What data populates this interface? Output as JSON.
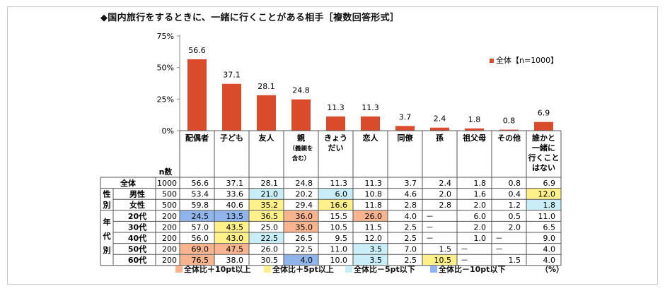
{
  "title": "◆国内旅行をするときに、一緒に行くことがある相手［複数回答形式］",
  "colors": {
    "bar": "#d94b2b",
    "plus10": "#f7b48f",
    "plus5": "#fff08a",
    "minus5": "#c9eef8",
    "minus10": "#8fb5ec"
  },
  "chart_data": {
    "type": "bar",
    "categories": [
      "配偶者",
      "子ども",
      "友人",
      "親",
      "きょうだい",
      "恋人",
      "同僚",
      "孫",
      "祖父母",
      "その他",
      "誰かと一緒に行くことはない"
    ],
    "category_lines": [
      [
        "配偶者"
      ],
      [
        "子ども"
      ],
      [
        "友人"
      ],
      [
        "親",
        "（義親を",
        "含む）"
      ],
      [
        "きょう",
        "だい"
      ],
      [
        "恋人"
      ],
      [
        "同僚"
      ],
      [
        "孫"
      ],
      [
        "祖父母"
      ],
      [
        "その他"
      ],
      [
        "誰かと",
        "一緒に",
        "行くこと",
        "はない"
      ]
    ],
    "series": [
      {
        "name": "全体【n=1000】",
        "values": [
          56.6,
          37.1,
          28.1,
          24.8,
          11.3,
          11.3,
          3.7,
          2.4,
          1.8,
          0.8,
          6.9
        ]
      }
    ],
    "y_ticks": [
      "75%",
      "50%",
      "25%",
      "0%"
    ],
    "ylim": [
      0,
      75
    ]
  },
  "table": {
    "n_header": "n数",
    "rows": [
      {
        "label": "全体",
        "n": "1000",
        "values": [
          "56.6",
          "37.1",
          "28.1",
          "24.8",
          "11.3",
          "11.3",
          "3.7",
          "2.4",
          "1.8",
          "0.8",
          "6.9"
        ],
        "hl": [
          "",
          "",
          "",
          "",
          "",
          "",
          "",
          "",
          "",
          "",
          ""
        ]
      },
      {
        "label": "男性",
        "n": "500",
        "values": [
          "53.4",
          "33.6",
          "21.0",
          "20.2",
          "6.0",
          "10.8",
          "4.6",
          "2.0",
          "1.6",
          "0.4",
          "12.0"
        ],
        "hl": [
          "",
          "",
          "m5",
          "",
          "m5",
          "",
          "",
          "",
          "",
          "",
          "p5"
        ]
      },
      {
        "label": "女性",
        "n": "500",
        "values": [
          "59.8",
          "40.6",
          "35.2",
          "29.4",
          "16.6",
          "11.8",
          "2.8",
          "2.8",
          "2.0",
          "1.2",
          "1.8"
        ],
        "hl": [
          "",
          "",
          "p5",
          "",
          "p5",
          "",
          "",
          "",
          "",
          "",
          "m5"
        ]
      },
      {
        "label": "20代",
        "n": "200",
        "values": [
          "24.5",
          "13.5",
          "36.5",
          "36.0",
          "15.5",
          "26.0",
          "4.0",
          "－",
          "6.0",
          "0.5",
          "11.0"
        ],
        "hl": [
          "m10",
          "m10",
          "p5",
          "p10",
          "",
          "p10",
          "",
          "",
          "",
          "",
          ""
        ]
      },
      {
        "label": "30代",
        "n": "200",
        "values": [
          "57.0",
          "43.5",
          "25.0",
          "35.0",
          "10.5",
          "11.5",
          "2.5",
          "－",
          "2.0",
          "2.0",
          "6.5"
        ],
        "hl": [
          "",
          "p5",
          "",
          "p10",
          "",
          "",
          "",
          "",
          "",
          "",
          ""
        ]
      },
      {
        "label": "40代",
        "n": "200",
        "values": [
          "56.0",
          "43.0",
          "22.5",
          "26.5",
          "9.5",
          "12.0",
          "2.5",
          "－",
          "1.0",
          "－",
          "9.0"
        ],
        "hl": [
          "",
          "p5",
          "m5",
          "",
          "",
          "",
          "",
          "",
          "",
          "",
          ""
        ]
      },
      {
        "label": "50代",
        "n": "200",
        "values": [
          "69.0",
          "47.5",
          "26.0",
          "22.5",
          "11.0",
          "3.5",
          "7.0",
          "1.5",
          "－",
          "－",
          "4.0"
        ],
        "hl": [
          "p10",
          "p10",
          "",
          "",
          "",
          "m5",
          "",
          "",
          "",
          "",
          ""
        ]
      },
      {
        "label": "60代",
        "n": "200",
        "values": [
          "76.5",
          "38.0",
          "30.5",
          "4.0",
          "10.0",
          "3.5",
          "2.5",
          "10.5",
          "－",
          "1.5",
          "4.0"
        ],
        "hl": [
          "p10",
          "",
          "",
          "m10",
          "",
          "m5",
          "",
          "p5",
          "",
          "",
          ""
        ]
      }
    ],
    "groups": [
      {
        "chars": [
          "性",
          "別"
        ]
      },
      {
        "chars": [
          "年",
          "代",
          "別"
        ]
      }
    ]
  },
  "legend": [
    {
      "key": "plus10",
      "label": "全体比＋10pt以上"
    },
    {
      "key": "plus5",
      "label": "全体比＋5pt以上"
    },
    {
      "key": "minus5",
      "label": "全体比－5pt以下"
    },
    {
      "key": "minus10",
      "label": "全体比－10pt以下"
    }
  ],
  "unit": "（%）"
}
